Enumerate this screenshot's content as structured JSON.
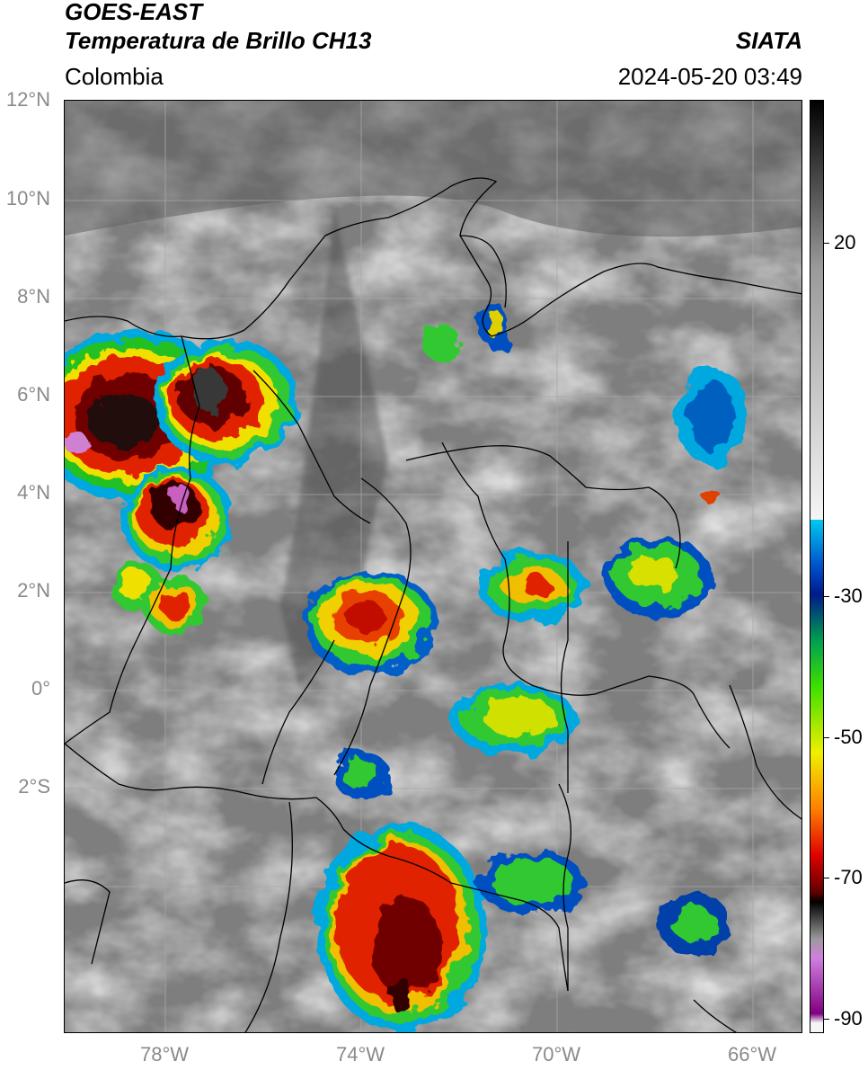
{
  "header": {
    "title_line1": "GOES-EAST",
    "title_line2": "Temperatura de Brillo CH13",
    "brand": "SIATA",
    "region": "Colombia",
    "timestamp": "2024-05-20 03:49"
  },
  "axes": {
    "lat_labels": [
      "12°N",
      "10°N",
      "8°N",
      "6°N",
      "4°N",
      "2°N",
      "0°",
      "2°S"
    ],
    "lon_labels": [
      "78°W",
      "74°W",
      "70°W",
      "66°W"
    ]
  },
  "colorbar": {
    "tick_labels": [
      "20",
      "-30",
      "-50",
      "-70",
      "-90"
    ],
    "colors": [
      "#f5f5f5",
      "#9a9a9a",
      "#1a1a1a",
      "#00c8f0",
      "#0050c8",
      "#001a8c",
      "#00a050",
      "#40e000",
      "#f0f000",
      "#ff8000",
      "#e00000",
      "#600000",
      "#000000",
      "#d080e0",
      "#800080"
    ]
  },
  "map_features": {
    "basemap": "grayscale infrared brightness temperature",
    "overlays": [
      "coastline",
      "country borders",
      "department borders",
      "lat/lon grid"
    ],
    "convective_cells_colors": [
      "red",
      "yellow",
      "green",
      "blue",
      "magenta"
    ]
  }
}
